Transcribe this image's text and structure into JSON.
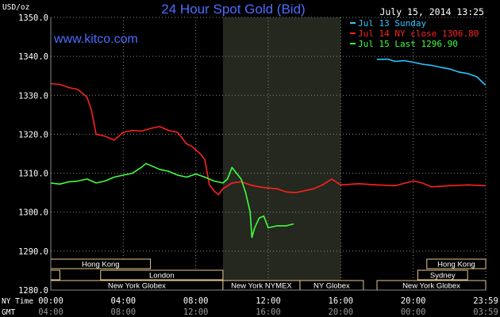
{
  "chart_data": {
    "type": "line",
    "title": "24 Hour Spot Gold (Bid)",
    "watermark": "www.kitco.com",
    "timestamp": "July 15, 2014 13:25",
    "ylabel": "USD/oz",
    "ylim": [
      1280,
      1350
    ],
    "y_ticks": [
      "1350.0",
      "1340.0",
      "1330.0",
      "1320.0",
      "1310.0",
      "1300.0",
      "1290.0",
      "1280.0"
    ],
    "xlim": [
      0,
      24
    ],
    "x_tick_hours": [
      0,
      4,
      8,
      12,
      16,
      20,
      24
    ],
    "x_row_labels": {
      "ny": "NY Time",
      "gmt": "GMT"
    },
    "x_ticks_ny": [
      "00:00",
      "04:00",
      "08:00",
      "12:00",
      "16:00",
      "20:00",
      "23:59"
    ],
    "x_ticks_gmt": [
      "04:00",
      "08:00",
      "12:00",
      "16:00",
      "20:00",
      "00:00",
      "03:59"
    ],
    "grid": true,
    "legend_position": "top-right",
    "highlight_range": [
      9.5,
      16
    ],
    "colors": {
      "background": "#000000",
      "grid": "#8a8a8a",
      "highlight": "#24281e",
      "title": "#4a6cff",
      "text": "#ffffff",
      "session_border": "#e8c890"
    },
    "series": [
      {
        "name": "Jul 13 Sunday",
        "color": "#2ec4ff",
        "x": [
          18.0,
          18.6,
          19.0,
          19.5,
          20.0,
          20.5,
          21.0,
          21.5,
          22.0,
          22.5,
          23.0,
          23.5,
          23.99
        ],
        "y": [
          1339.2,
          1339.3,
          1338.7,
          1338.9,
          1338.5,
          1338.0,
          1337.7,
          1337.2,
          1336.8,
          1336.0,
          1335.6,
          1334.8,
          1332.6
        ]
      },
      {
        "name": "Jul 14 NY close 1306.80",
        "color": "#ff2020",
        "x": [
          0.0,
          0.5,
          1.0,
          1.5,
          2.0,
          2.25,
          2.5,
          3.0,
          3.5,
          4.0,
          4.5,
          5.0,
          5.5,
          6.0,
          6.5,
          7.0,
          7.25,
          7.5,
          7.75,
          8.0,
          8.25,
          8.5,
          8.75,
          9.0,
          9.25,
          9.5,
          10.0,
          10.5,
          11.0,
          11.5,
          12.0,
          12.5,
          13.0,
          13.5,
          14.0,
          14.5,
          15.0,
          15.5,
          16.0,
          17.0,
          18.0,
          19.0,
          20.0,
          20.5,
          21.0,
          22.0,
          23.0,
          23.99
        ],
        "y": [
          1333.0,
          1332.8,
          1332.0,
          1331.5,
          1329.5,
          1326.0,
          1320.0,
          1319.5,
          1318.5,
          1320.5,
          1321.0,
          1320.8,
          1321.5,
          1322.0,
          1321.0,
          1320.5,
          1319.0,
          1317.5,
          1317.0,
          1316.0,
          1315.0,
          1313.5,
          1307.0,
          1305.5,
          1304.5,
          1306.0,
          1307.5,
          1307.8,
          1307.0,
          1306.5,
          1306.2,
          1306.0,
          1305.2,
          1305.0,
          1305.5,
          1306.0,
          1307.0,
          1308.5,
          1307.0,
          1307.3,
          1307.0,
          1306.8,
          1308.0,
          1307.5,
          1306.5,
          1306.8,
          1307.0,
          1306.8
        ]
      },
      {
        "name": "Jul 15 Last 1296.90",
        "color": "#40ff40",
        "x": [
          0.0,
          0.5,
          1.0,
          1.5,
          2.0,
          2.5,
          3.0,
          3.5,
          4.0,
          4.5,
          5.0,
          5.25,
          5.5,
          6.0,
          6.5,
          7.0,
          7.5,
          8.0,
          8.5,
          9.0,
          9.5,
          9.75,
          10.0,
          10.25,
          10.5,
          10.75,
          11.0,
          11.1,
          11.25,
          11.5,
          11.75,
          12.0,
          12.5,
          13.0,
          13.4
        ],
        "y": [
          1307.5,
          1307.2,
          1307.8,
          1308.0,
          1308.5,
          1307.5,
          1308.0,
          1309.0,
          1309.5,
          1310.0,
          1311.5,
          1312.5,
          1312.0,
          1311.0,
          1310.5,
          1309.5,
          1309.0,
          1309.8,
          1309.0,
          1308.0,
          1307.5,
          1308.5,
          1311.5,
          1310.0,
          1308.5,
          1305.0,
          1300.0,
          1293.5,
          1296.0,
          1298.5,
          1299.0,
          1296.0,
          1296.5,
          1296.5,
          1297.0
        ]
      }
    ],
    "session_rows": [
      [
        {
          "label": "Hong Kong",
          "start": 0.0,
          "end": 5.5
        },
        {
          "label": "Hong Kong",
          "start": 20.75,
          "end": 24.0
        }
      ],
      [
        {
          "label": "",
          "start": 0.0,
          "end": 0.5
        },
        {
          "label": "London",
          "start": 2.75,
          "end": 9.5
        },
        {
          "label": "Sydney",
          "start": 20.25,
          "end": 23.0
        }
      ],
      [
        {
          "label": "New York Globex",
          "start": 0.0,
          "end": 9.5
        },
        {
          "label": "New York NYMEX",
          "start": 9.5,
          "end": 13.75
        },
        {
          "label": "NY Globex",
          "start": 13.75,
          "end": 17.25
        },
        {
          "label": "New York Globex",
          "start": 18.0,
          "end": 24.0
        }
      ]
    ]
  }
}
